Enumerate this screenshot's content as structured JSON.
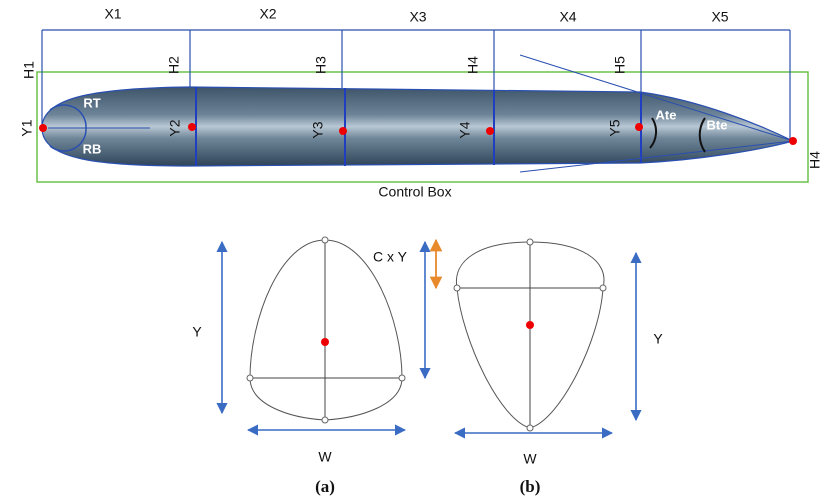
{
  "top": {
    "x_labels": [
      "X1",
      "X2",
      "X3",
      "X4",
      "X5"
    ],
    "h_labels": [
      "H1",
      "H2",
      "H3",
      "H4",
      "H5",
      "H4"
    ],
    "y_labels": [
      "Y1",
      "Y2",
      "Y3",
      "Y4",
      "Y5"
    ],
    "rt": "RT",
    "rb": "RB",
    "ate": "Ate",
    "bte": "Bte",
    "control_box": "Control Box"
  },
  "panel_a": {
    "y": "Y",
    "w": "W",
    "cxy": "C x Y",
    "caption": "(a)"
  },
  "panel_b": {
    "y": "Y",
    "w": "W",
    "caption": "(b)"
  }
}
